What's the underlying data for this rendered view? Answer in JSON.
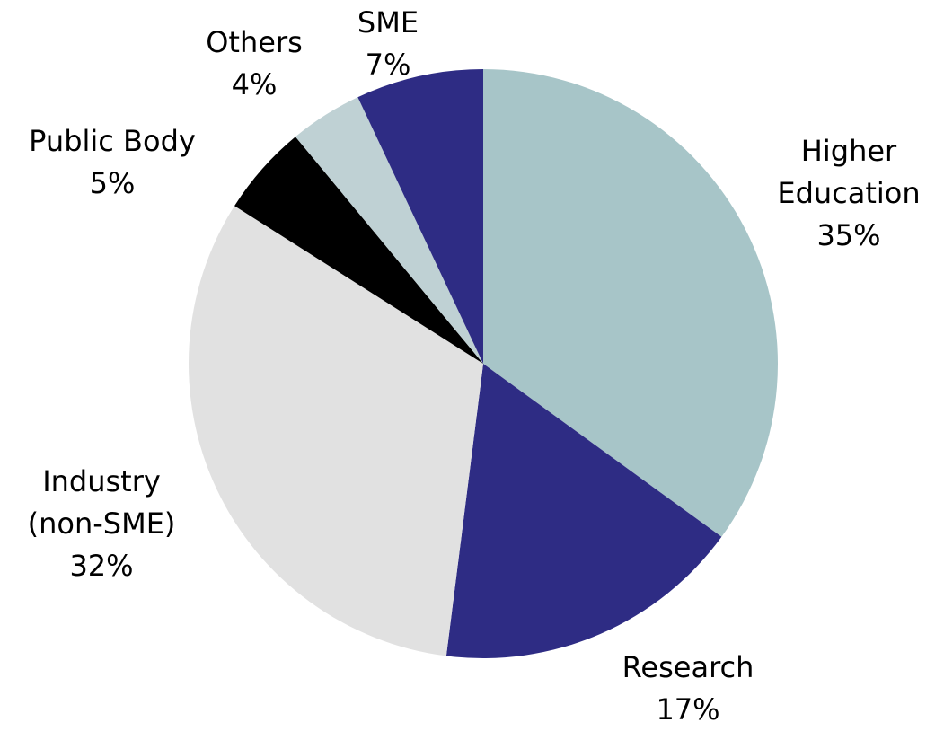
{
  "chart_data": {
    "type": "pie",
    "categories": [
      "Higher Education",
      "Research",
      "Industry (non-SME)",
      "Public Body",
      "Others",
      "SME"
    ],
    "values": [
      35,
      17,
      32,
      5,
      4,
      7
    ],
    "value_labels": [
      "35%",
      "17%",
      "32%",
      "5%",
      "4%",
      "7%"
    ],
    "colors": [
      "#a7c5c8",
      "#2e2c84",
      "#e1e1e1",
      "#000000",
      "#bfd1d4",
      "#2e2c84"
    ]
  }
}
